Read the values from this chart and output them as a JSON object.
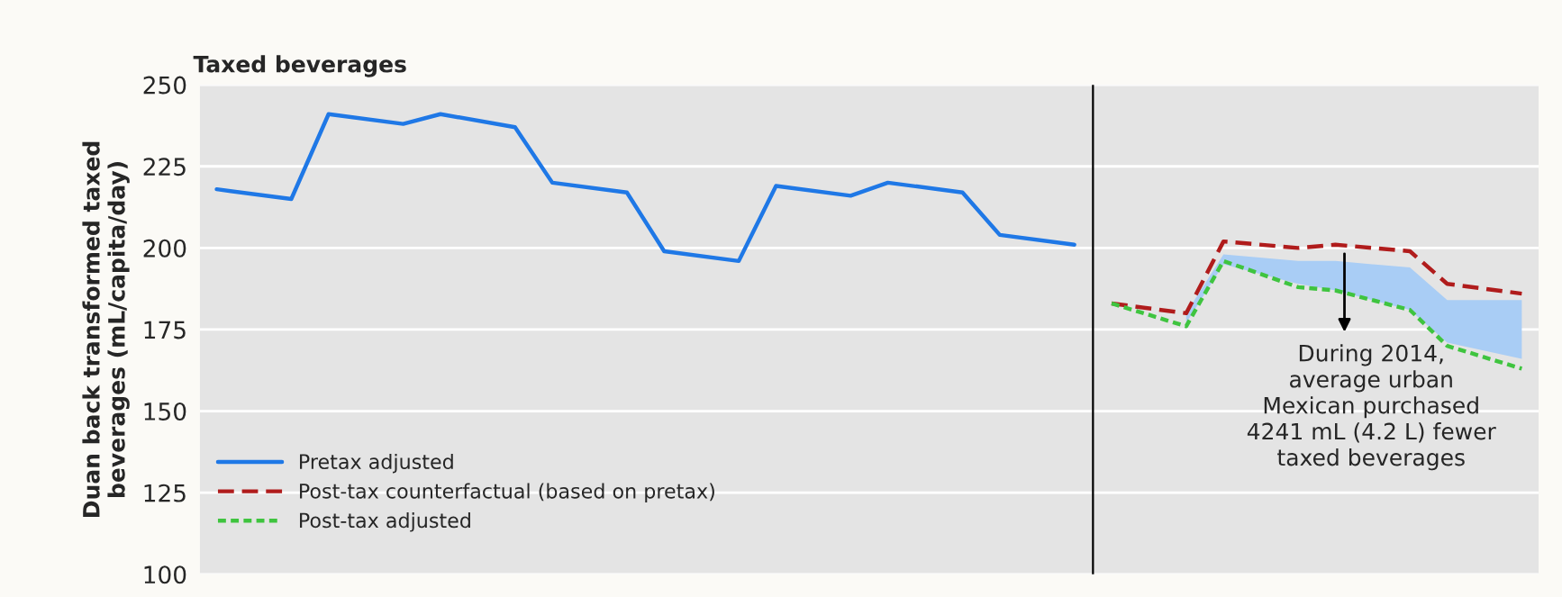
{
  "chart_data": {
    "type": "line",
    "title": "Taxed beverages",
    "ylabel": "Duan back transformed taxed\nbeverages (mL/capita/day)",
    "categories": [
      null,
      null,
      null,
      null,
      null,
      null,
      null,
      null,
      null,
      null,
      null,
      null,
      null,
      null,
      null,
      null,
      null,
      null,
      null,
      null,
      null,
      null,
      null,
      null,
      null,
      null,
      null,
      null,
      null,
      null,
      null,
      null,
      null,
      null,
      null,
      null
    ],
    "ylim": [
      100,
      250
    ],
    "yticks": [
      100,
      125,
      150,
      175,
      200,
      225,
      250
    ],
    "grid": "y",
    "legend": "bottom left",
    "series": [
      {
        "name": "Pretax adjusted",
        "color": "#1f78e6",
        "line_style": "solid",
        "values": [
          218,
          null,
          215,
          241,
          null,
          238,
          241,
          null,
          237,
          220,
          null,
          217,
          199,
          null,
          196,
          219,
          null,
          216,
          220,
          null,
          217,
          204,
          null,
          201,
          null,
          null,
          null,
          null,
          null,
          null,
          null,
          null,
          null,
          null,
          null,
          null
        ]
      },
      {
        "name": "Post-tax counterfactual (based on pretax)",
        "color": "#b01c1c",
        "line_style": "dashed",
        "values": [
          null,
          null,
          null,
          null,
          null,
          null,
          null,
          null,
          null,
          null,
          null,
          null,
          null,
          null,
          null,
          null,
          null,
          null,
          null,
          null,
          null,
          null,
          null,
          null,
          183,
          null,
          180,
          202,
          null,
          200,
          201,
          null,
          199,
          189,
          null,
          186
        ]
      },
      {
        "name": "Post-tax adjusted",
        "color": "#3fc43f",
        "line_style": "dotted",
        "values": [
          null,
          null,
          null,
          null,
          null,
          null,
          null,
          null,
          null,
          null,
          null,
          null,
          null,
          null,
          null,
          null,
          null,
          null,
          null,
          null,
          null,
          null,
          null,
          null,
          183,
          null,
          176,
          196,
          null,
          188,
          187,
          null,
          181,
          170,
          null,
          163
        ],
        "lower": [
          null,
          null,
          null,
          null,
          null,
          null,
          null,
          null,
          null,
          null,
          null,
          null,
          null,
          null,
          null,
          null,
          null,
          null,
          null,
          null,
          null,
          null,
          null,
          null,
          null,
          null,
          177,
          195,
          null,
          189,
          187,
          null,
          181,
          171,
          null,
          166
        ],
        "upper": [
          null,
          null,
          null,
          null,
          null,
          null,
          null,
          null,
          null,
          null,
          null,
          null,
          null,
          null,
          null,
          null,
          null,
          null,
          null,
          null,
          null,
          null,
          null,
          null,
          null,
          null,
          180,
          198,
          null,
          196,
          196,
          null,
          194,
          184,
          null,
          184
        ]
      }
    ],
    "annotations": [
      "During 2014,\naverage urban\nMexican purchased\n4241 mL (4.2 L) fewer\ntaxed beverages"
    ]
  }
}
